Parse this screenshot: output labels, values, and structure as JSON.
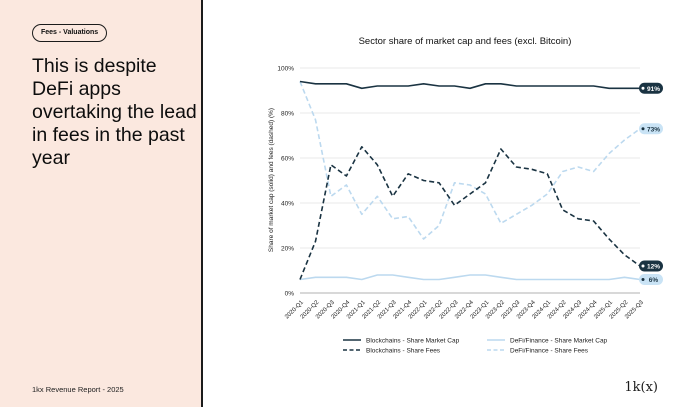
{
  "panel": {
    "tag": "Fees - Valuations",
    "headline": "This is despite DeFi apps overtaking the lead in fees in the past year",
    "footer": "1kx Revenue Report  - 2025",
    "logo": "1k(x)"
  },
  "colors": {
    "dark": "#1a3342",
    "light": "#bcd9ef",
    "label_bg": "#c9e3f5"
  },
  "chart_data": {
    "type": "line",
    "title": "Sector share of market cap and fees (excl. Bitcoin)",
    "xlabel": "",
    "ylabel": "Share of market cap (solid) and fees (dashed) (%)",
    "ylim": [
      0,
      100
    ],
    "yticks": [
      "0%",
      "20%",
      "40%",
      "60%",
      "80%",
      "100%"
    ],
    "ytick_values": [
      0,
      20,
      40,
      60,
      80,
      100
    ],
    "categories": [
      "2020-Q1",
      "2020-Q2",
      "2020-Q3",
      "2020-Q4",
      "2021-Q1",
      "2021-Q2",
      "2021-Q3",
      "2021-Q4",
      "2022-Q1",
      "2022-Q2",
      "2022-Q3",
      "2022-Q4",
      "2023-Q1",
      "2023-Q2",
      "2023-Q3",
      "2023-Q4",
      "2024-Q1",
      "2024-Q2",
      "2024-Q3",
      "2024-Q4",
      "2025-Q1",
      "2025-Q2",
      "2025-Q3"
    ],
    "series": [
      {
        "name": "Blockchains - Share Market Cap",
        "style": "solid",
        "color": "#1a3342",
        "values": [
          94,
          93,
          93,
          93,
          91,
          92,
          92,
          92,
          93,
          92,
          92,
          91,
          93,
          93,
          92,
          92,
          92,
          92,
          92,
          92,
          91,
          91,
          91
        ],
        "end_label": "91%"
      },
      {
        "name": "Blockchains - Share Fees",
        "style": "dashed",
        "color": "#1a3342",
        "values": [
          6,
          23,
          57,
          52,
          65,
          57,
          43,
          53,
          50,
          49,
          39,
          44,
          49,
          64,
          56,
          55,
          53,
          37,
          33,
          32,
          24,
          17,
          12
        ],
        "end_label": "12%"
      },
      {
        "name": "DeFi/Finance - Share Market Cap",
        "style": "solid",
        "color": "#bcd9ef",
        "values": [
          6,
          7,
          7,
          7,
          6,
          8,
          8,
          7,
          6,
          6,
          7,
          8,
          8,
          7,
          6,
          6,
          6,
          6,
          6,
          6,
          6,
          7,
          6
        ],
        "end_label": "6%"
      },
      {
        "name": "DeFi/Finance - Share Fees",
        "style": "dashed",
        "color": "#bcd9ef",
        "values": [
          94,
          77,
          43,
          48,
          35,
          43,
          33,
          34,
          24,
          30,
          49,
          48,
          44,
          31,
          35,
          39,
          44,
          54,
          56,
          54,
          62,
          68,
          73
        ],
        "end_label": "73%"
      }
    ],
    "legend": [
      {
        "label": "Blockchains - Share Market Cap",
        "style": "solid",
        "color": "#1a3342"
      },
      {
        "label": "DeFi/Finance - Share Market Cap",
        "style": "solid",
        "color": "#bcd9ef"
      },
      {
        "label": "Blockchains - Share Fees",
        "style": "dashed",
        "color": "#1a3342"
      },
      {
        "label": "DeFi/Finance - Share Fees",
        "style": "dashed",
        "color": "#bcd9ef"
      }
    ],
    "legend_position": "bottom"
  }
}
